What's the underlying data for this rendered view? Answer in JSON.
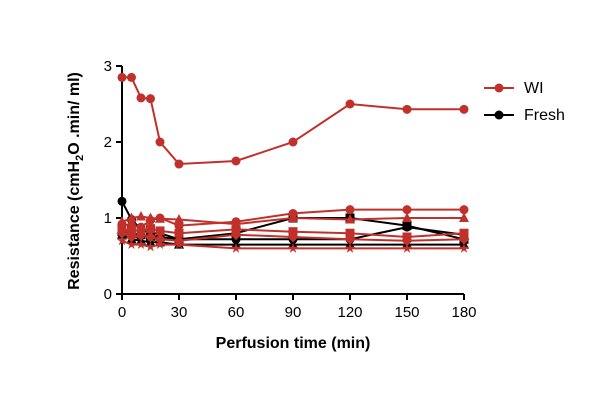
{
  "chart_data": {
    "type": "line",
    "title": "",
    "xlabel": "Perfusion time (min)",
    "ylabel": {
      "part1": "Resistance (cmH",
      "sub": "2",
      "part2": "O .min/ ml)"
    },
    "xlim": [
      0,
      180
    ],
    "ylim": [
      0,
      3
    ],
    "x_ticks": [
      "0",
      "30",
      "60",
      "90",
      "120",
      "150",
      "180"
    ],
    "y_ticks": [
      "0",
      "1",
      "2",
      "3"
    ],
    "grid": false,
    "legend_position": "right",
    "legend": [
      {
        "label": "WI",
        "color": "#c0312b"
      },
      {
        "label": "Fresh",
        "color": "#000000"
      }
    ],
    "series": [
      {
        "group": "WI",
        "color": "#c0312b",
        "marker": "circle",
        "points": [
          [
            0,
            2.85
          ],
          [
            5,
            2.85
          ],
          [
            10,
            2.58
          ],
          [
            15,
            2.57
          ],
          [
            20,
            2.0
          ],
          [
            30,
            1.71
          ],
          [
            60,
            1.75
          ],
          [
            90,
            2.0
          ],
          [
            120,
            2.5
          ],
          [
            150,
            2.43
          ],
          [
            180,
            2.43
          ]
        ]
      },
      {
        "group": "WI",
        "color": "#c0312b",
        "marker": "circle",
        "points": [
          [
            0,
            0.92
          ],
          [
            5,
            0.9
          ],
          [
            10,
            0.88
          ],
          [
            15,
            0.97
          ],
          [
            20,
            1.0
          ],
          [
            30,
            0.9
          ],
          [
            60,
            0.95
          ],
          [
            90,
            1.06
          ],
          [
            120,
            1.11
          ],
          [
            150,
            1.11
          ],
          [
            180,
            1.11
          ]
        ]
      },
      {
        "group": "WI",
        "color": "#c0312b",
        "marker": "triangle",
        "points": [
          [
            0,
            0.95
          ],
          [
            5,
            1.0
          ],
          [
            10,
            1.02
          ],
          [
            15,
            1.0
          ],
          [
            20,
            0.99
          ],
          [
            30,
            0.98
          ],
          [
            60,
            0.92
          ],
          [
            90,
            1.0
          ],
          [
            120,
            0.98
          ],
          [
            150,
            1.0
          ],
          [
            180,
            1.0
          ]
        ]
      },
      {
        "group": "WI",
        "color": "#c0312b",
        "marker": "square",
        "points": [
          [
            0,
            0.85
          ],
          [
            5,
            0.83
          ],
          [
            10,
            0.84
          ],
          [
            15,
            0.86
          ],
          [
            20,
            0.83
          ],
          [
            30,
            0.8
          ],
          [
            60,
            0.85
          ],
          [
            90,
            0.82
          ],
          [
            120,
            0.8
          ],
          [
            150,
            0.75
          ],
          [
            180,
            0.8
          ]
        ]
      },
      {
        "group": "WI",
        "color": "#c0312b",
        "marker": "diamond",
        "points": [
          [
            0,
            0.8
          ],
          [
            5,
            0.75
          ],
          [
            10,
            0.77
          ],
          [
            15,
            0.75
          ],
          [
            20,
            0.72
          ],
          [
            30,
            0.7
          ],
          [
            60,
            0.78
          ],
          [
            90,
            0.75
          ],
          [
            120,
            0.72
          ],
          [
            150,
            0.7
          ],
          [
            180,
            0.72
          ]
        ]
      },
      {
        "group": "WI",
        "color": "#c0312b",
        "marker": "star",
        "points": [
          [
            0,
            0.7
          ],
          [
            5,
            0.65
          ],
          [
            10,
            0.65
          ],
          [
            15,
            0.62
          ],
          [
            20,
            0.65
          ],
          [
            30,
            0.65
          ],
          [
            60,
            0.6
          ],
          [
            90,
            0.6
          ],
          [
            120,
            0.6
          ],
          [
            150,
            0.6
          ],
          [
            180,
            0.6
          ]
        ]
      },
      {
        "group": "Fresh",
        "color": "#000000",
        "marker": "circle",
        "points": [
          [
            0,
            1.22
          ],
          [
            5,
            0.98
          ],
          [
            10,
            0.85
          ],
          [
            15,
            0.8
          ],
          [
            20,
            0.8
          ],
          [
            30,
            0.72
          ],
          [
            60,
            0.72
          ],
          [
            90,
            0.72
          ],
          [
            120,
            0.72
          ],
          [
            150,
            0.88
          ],
          [
            180,
            0.78
          ]
        ]
      },
      {
        "group": "Fresh",
        "color": "#000000",
        "marker": "square",
        "points": [
          [
            0,
            0.82
          ],
          [
            5,
            0.8
          ],
          [
            10,
            0.78
          ],
          [
            15,
            0.76
          ],
          [
            20,
            0.75
          ],
          [
            30,
            0.72
          ],
          [
            60,
            0.8
          ],
          [
            90,
            1.0
          ],
          [
            120,
            1.0
          ],
          [
            150,
            0.9
          ],
          [
            180,
            0.72
          ]
        ]
      },
      {
        "group": "Fresh",
        "color": "#000000",
        "marker": "triangle",
        "points": [
          [
            0,
            0.78
          ],
          [
            5,
            0.72
          ],
          [
            10,
            0.7
          ],
          [
            15,
            0.68
          ],
          [
            20,
            0.68
          ],
          [
            30,
            0.65
          ],
          [
            60,
            0.65
          ],
          [
            90,
            0.65
          ],
          [
            120,
            0.65
          ],
          [
            150,
            0.65
          ],
          [
            180,
            0.65
          ]
        ]
      }
    ]
  }
}
